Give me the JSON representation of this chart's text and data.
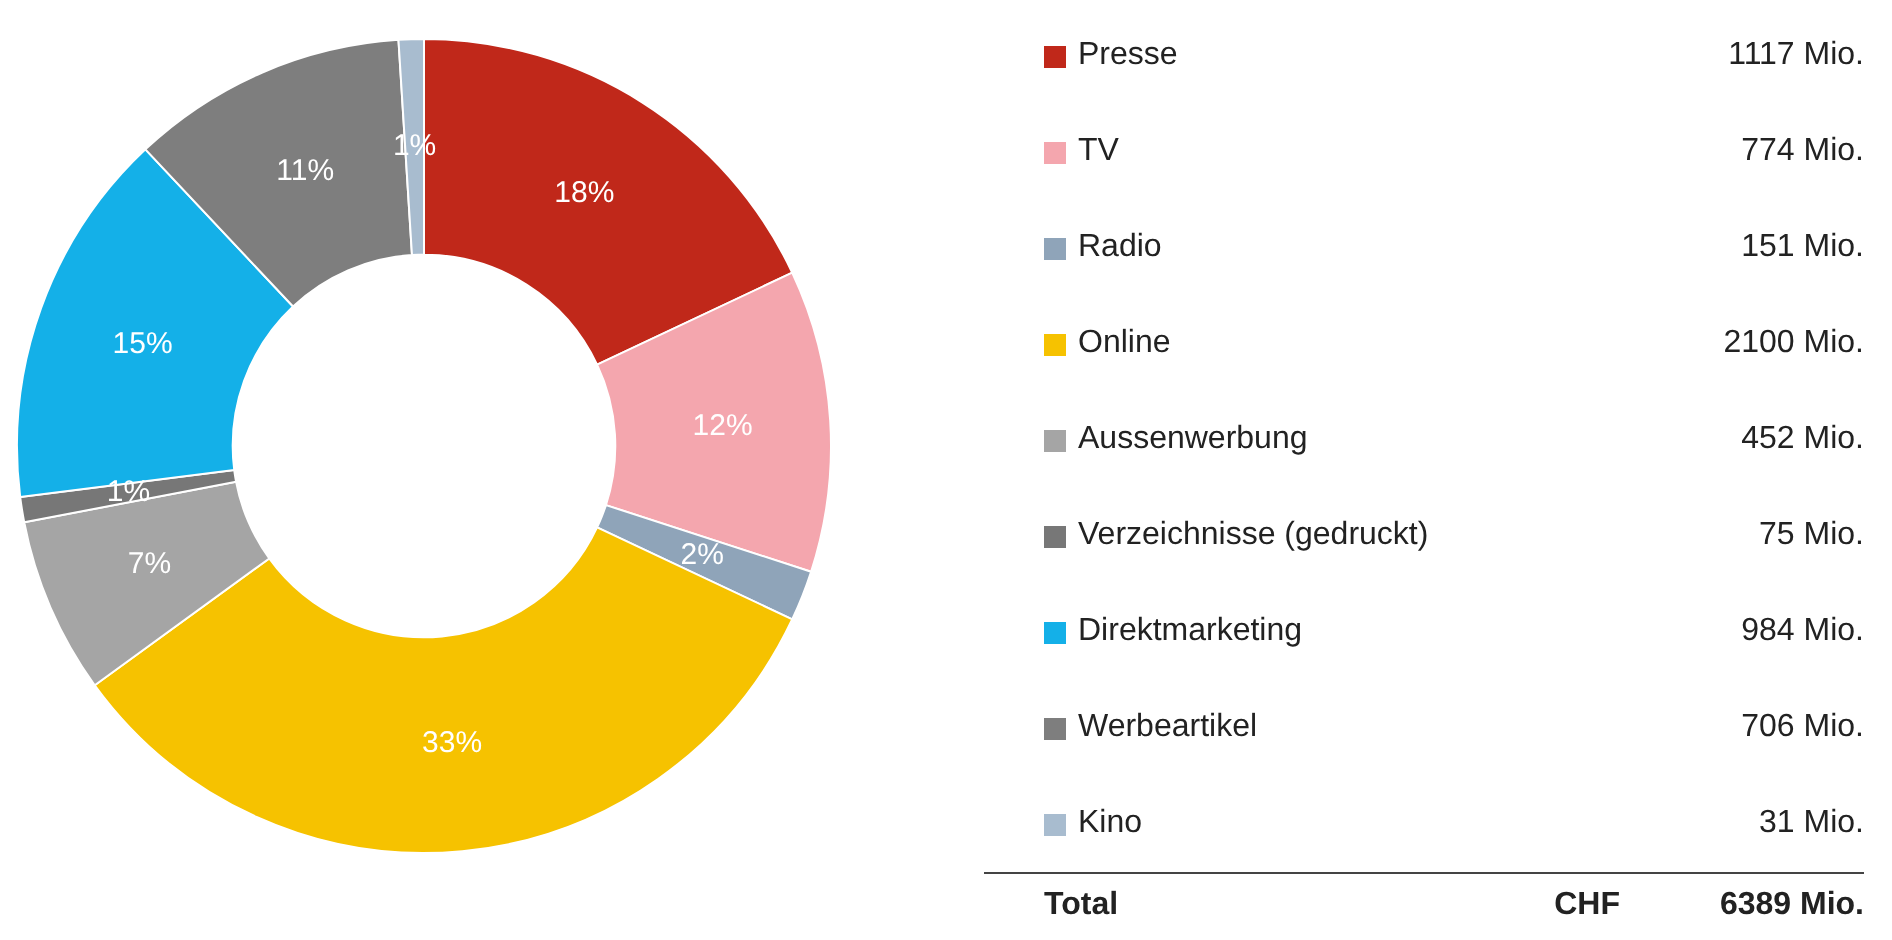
{
  "chart_data": {
    "type": "donut",
    "categories": [
      "Presse",
      "TV",
      "Radio",
      "Online",
      "Aussenwerbung",
      "Verzeichnisse (gedruckt)",
      "Direktmarketing",
      "Werbeartikel",
      "Kino"
    ],
    "values": [
      18,
      12,
      2,
      33,
      7,
      1,
      15,
      11,
      1
    ],
    "colors": [
      "#c0281a",
      "#f4a6ae",
      "#8fa4b9",
      "#f6c200",
      "#a5a5a5",
      "#777777",
      "#14b0e8",
      "#7e7e7e",
      "#a8bccf"
    ],
    "value_labels": [
      "18%",
      "12%",
      "2%",
      "33%",
      "7%",
      "1%",
      "15%",
      "11%",
      "1%"
    ],
    "annotations": [
      {
        "text": "1117 Mio.",
        "x": "Presse"
      },
      {
        "text": "774 Mio.",
        "x": "TV"
      },
      {
        "text": "151 Mio.",
        "x": "Radio"
      },
      {
        "text": "2100 Mio.",
        "x": "Online"
      },
      {
        "text": "452 Mio.",
        "x": "Aussenwerbung"
      },
      {
        "text": "75 Mio.",
        "x": "Verzeichnisse (gedruckt)"
      },
      {
        "text": "984 Mio.",
        "x": "Direktmarketing"
      },
      {
        "text": "706 Mio.",
        "x": "Werbeartikel"
      },
      {
        "text": "31 Mio.",
        "x": "Kino"
      },
      "Total",
      "CHF",
      "6389 Mio."
    ],
    "legend": "right"
  }
}
